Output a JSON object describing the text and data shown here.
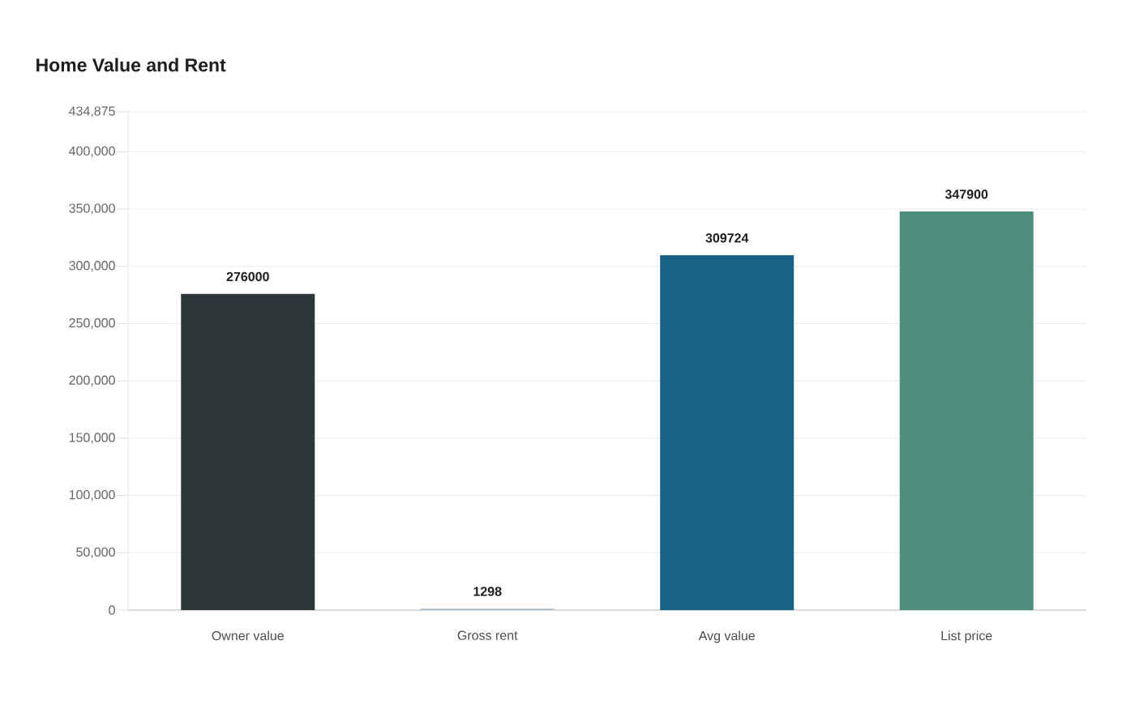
{
  "chart_data": {
    "type": "bar",
    "title": "Home Value and Rent",
    "categories": [
      "Owner value",
      "Gross rent",
      "Avg value",
      "List price"
    ],
    "values": [
      276000,
      1298,
      309724,
      347900
    ],
    "colors": [
      "#2e3638",
      "#a9bccb",
      "#186287",
      "#4e8e7c"
    ],
    "ylim": [
      0,
      434875
    ],
    "yticks": [
      0,
      {
        "value": 50000,
        "label": "50,000"
      },
      {
        "value": 100000,
        "label": "100,000"
      },
      {
        "value": 150000,
        "label": "150,000"
      },
      {
        "value": 200000,
        "label": "200,000"
      },
      {
        "value": 250000,
        "label": "250,000"
      },
      {
        "value": 300000,
        "label": "300,000"
      },
      {
        "value": 350000,
        "label": "350,000"
      },
      {
        "value": 400000,
        "label": "400,000"
      },
      {
        "value": 434875,
        "label": "434,875"
      }
    ],
    "grid": "y",
    "data_labels": true
  }
}
